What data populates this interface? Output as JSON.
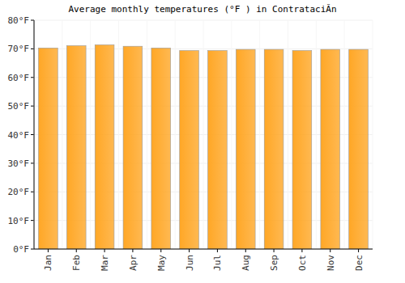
{
  "chart_data": {
    "type": "bar",
    "title": "Average monthly temperatures (°F ) in ContrataciĂn",
    "categories": [
      "Jan",
      "Feb",
      "Mar",
      "Apr",
      "May",
      "Jun",
      "Jul",
      "Aug",
      "Sep",
      "Oct",
      "Nov",
      "Dec"
    ],
    "values": [
      70.3,
      71.1,
      71.4,
      70.9,
      70.3,
      69.4,
      69.4,
      69.8,
      69.8,
      69.4,
      69.8,
      69.8
    ],
    "color": "#ffa726",
    "ylim": [
      0,
      80
    ],
    "yticks": [
      {
        "value": 0,
        "label": "0°F"
      },
      {
        "value": 10,
        "label": "10°F"
      },
      {
        "value": 20,
        "label": "20°F"
      },
      {
        "value": 30,
        "label": "30°F"
      },
      {
        "value": 40,
        "label": "40°F"
      },
      {
        "value": 50,
        "label": "50°F"
      },
      {
        "value": 60,
        "label": "60°F"
      },
      {
        "value": 70,
        "label": "70°F"
      },
      {
        "value": 80,
        "label": "80°F"
      }
    ],
    "grid": true
  }
}
